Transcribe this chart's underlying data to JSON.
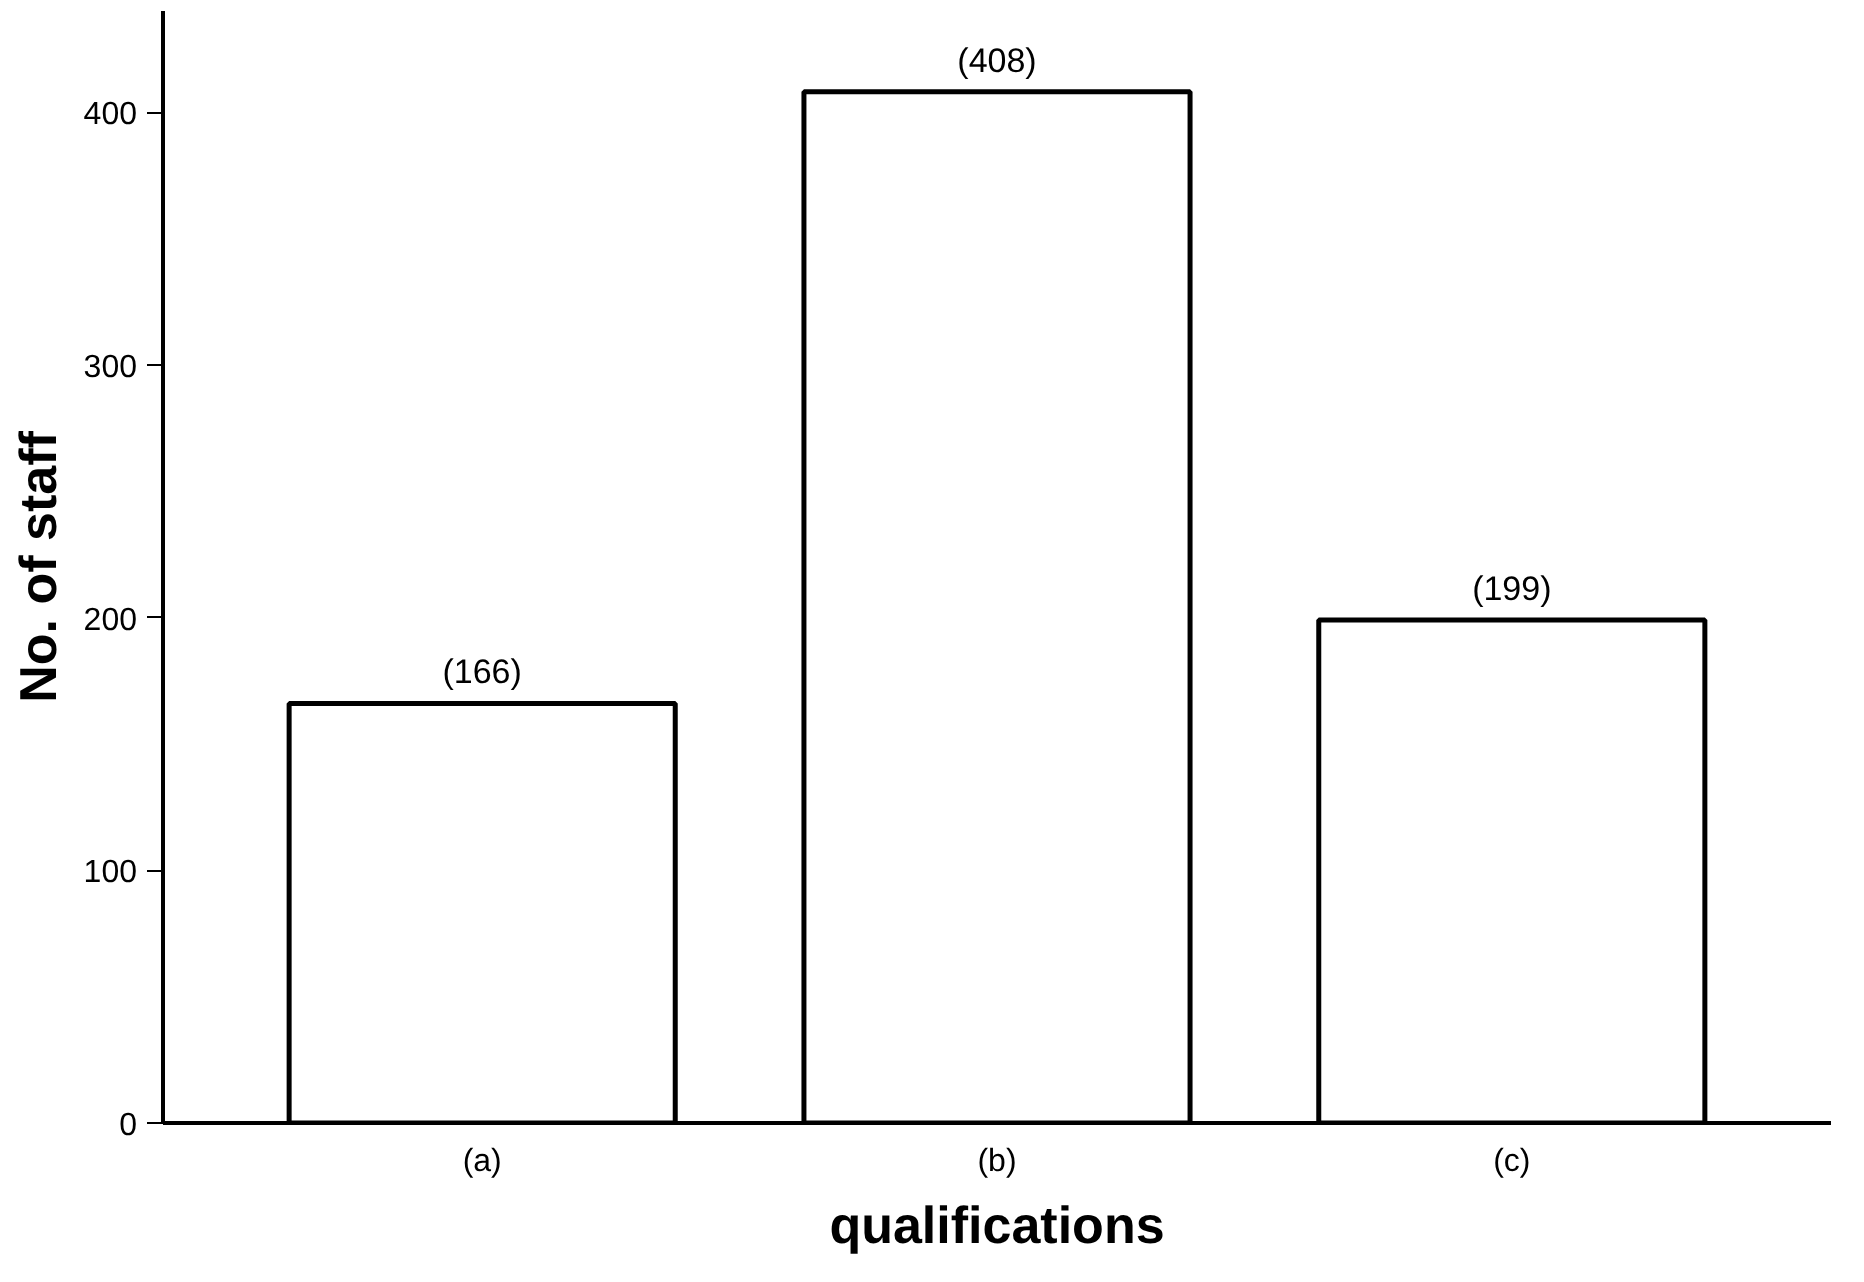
{
  "chart_data": {
    "type": "bar",
    "xlabel": "qualifications",
    "ylabel": "No. of staff",
    "categories": [
      "(a)",
      "(b)",
      "(c)"
    ],
    "values": [
      166,
      408,
      199
    ],
    "value_labels": [
      "(166)",
      "(408)",
      "(199)"
    ],
    "color": "#ffffff",
    "ylim": [
      0,
      440
    ],
    "yticks": [
      0,
      100,
      200,
      300,
      400
    ],
    "grid": false
  }
}
